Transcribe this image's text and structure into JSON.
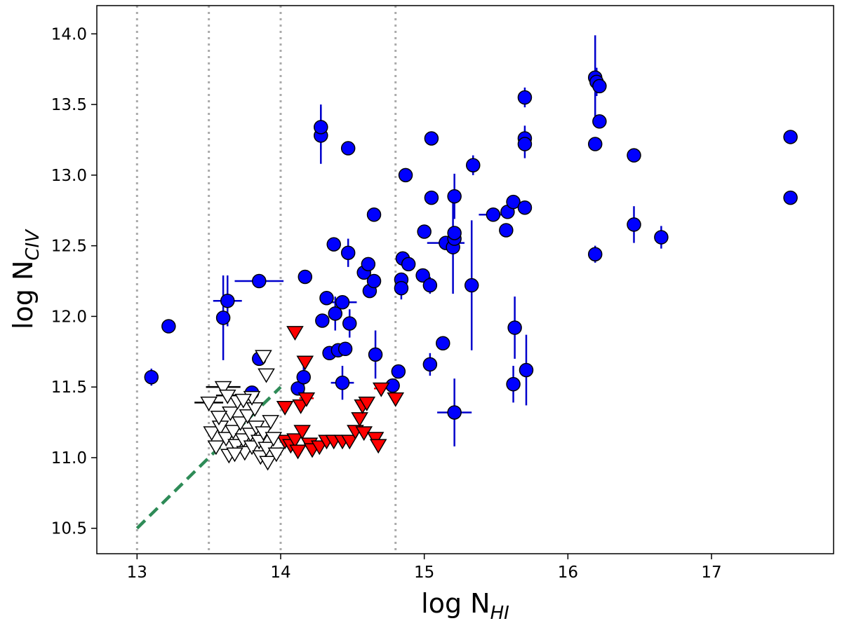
{
  "chart_data": {
    "type": "scatter",
    "xlabel": {
      "main": "log N",
      "sub": "HI"
    },
    "ylabel": {
      "main": "log N",
      "sub": "CIV"
    },
    "xlim": [
      12.72,
      17.85
    ],
    "ylim": [
      10.32,
      14.2
    ],
    "xticks": [
      "13",
      "14",
      "15",
      "16",
      "17"
    ],
    "yticks": [
      "10.5",
      "11.0",
      "11.5",
      "12.0",
      "12.5",
      "13.0",
      "13.5",
      "14.0"
    ],
    "grid": false,
    "legend": "none",
    "colors": {
      "detection": "#0000ff",
      "detection_err": "#0000cc",
      "upper_limit_red": "#ff0000",
      "upper_limit_white": "#ffffff",
      "reference_line": "#2e8b57",
      "vertical_lines": "#aaaaaa"
    },
    "vertical_lines_x": [
      13.0,
      13.5,
      14.0,
      14.8
    ],
    "reference_line": {
      "x": [
        13.0,
        14.0
      ],
      "y": [
        10.5,
        11.5
      ],
      "style": "dashed"
    },
    "series": [
      {
        "kind": "detection",
        "marker": "circle",
        "points": [
          {
            "x": 13.1,
            "y": 11.57,
            "yerr": 0.06
          },
          {
            "x": 13.22,
            "y": 11.93
          },
          {
            "x": 13.6,
            "y": 11.99,
            "yerr": 0.3
          },
          {
            "x": 13.63,
            "y": 12.11,
            "yerr": 0.18,
            "xerr": 0.1
          },
          {
            "x": 13.8,
            "y": 11.46
          },
          {
            "x": 13.85,
            "y": 12.25,
            "xerr": 0.17
          },
          {
            "x": 13.85,
            "y": 11.7
          },
          {
            "x": 14.12,
            "y": 11.49
          },
          {
            "x": 14.16,
            "y": 11.57,
            "yerr": 0.12
          },
          {
            "x": 14.17,
            "y": 12.28
          },
          {
            "x": 14.28,
            "y": 13.28,
            "yerr": 0.2
          },
          {
            "x": 14.28,
            "y": 13.34,
            "yerr": 0.16
          },
          {
            "x": 14.29,
            "y": 11.97
          },
          {
            "x": 14.32,
            "y": 12.13
          },
          {
            "x": 14.34,
            "y": 11.74
          },
          {
            "x": 14.37,
            "y": 12.51
          },
          {
            "x": 14.38,
            "y": 12.02,
            "yerr": 0.12
          },
          {
            "x": 14.4,
            "y": 11.76
          },
          {
            "x": 14.43,
            "y": 12.1,
            "xerr": 0.1
          },
          {
            "x": 14.43,
            "y": 11.53,
            "yerr": 0.12,
            "xerr": 0.08
          },
          {
            "x": 14.45,
            "y": 11.77
          },
          {
            "x": 14.47,
            "y": 12.45,
            "yerr": 0.1
          },
          {
            "x": 14.47,
            "y": 13.19
          },
          {
            "x": 14.48,
            "y": 11.95,
            "yerr": 0.1
          },
          {
            "x": 14.58,
            "y": 12.31
          },
          {
            "x": 14.61,
            "y": 12.37
          },
          {
            "x": 14.62,
            "y": 12.18
          },
          {
            "x": 14.65,
            "y": 12.25
          },
          {
            "x": 14.65,
            "y": 12.72
          },
          {
            "x": 14.66,
            "y": 11.73,
            "yerr": 0.17
          },
          {
            "x": 14.78,
            "y": 11.51
          },
          {
            "x": 14.82,
            "y": 11.61
          },
          {
            "x": 14.84,
            "y": 12.26
          },
          {
            "x": 14.84,
            "y": 12.2,
            "yerr": 0.08
          },
          {
            "x": 14.85,
            "y": 12.41
          },
          {
            "x": 14.89,
            "y": 12.37
          },
          {
            "x": 14.87,
            "y": 13.0
          },
          {
            "x": 14.99,
            "y": 12.29
          },
          {
            "x": 15.0,
            "y": 12.6
          },
          {
            "x": 15.04,
            "y": 12.22,
            "yerr": 0.06
          },
          {
            "x": 15.04,
            "y": 11.66,
            "yerr": 0.08
          },
          {
            "x": 15.05,
            "y": 12.84
          },
          {
            "x": 15.05,
            "y": 13.26
          },
          {
            "x": 15.13,
            "y": 11.81
          },
          {
            "x": 15.15,
            "y": 12.52,
            "xerr": 0.13
          },
          {
            "x": 15.2,
            "y": 12.49,
            "yerr": 0.33
          },
          {
            "x": 15.21,
            "y": 12.55
          },
          {
            "x": 15.21,
            "y": 12.59
          },
          {
            "x": 15.21,
            "y": 12.85,
            "yerr": 0.16
          },
          {
            "x": 15.21,
            "y": 11.32,
            "yerr": 0.24,
            "xerr": 0.12
          },
          {
            "x": 15.33,
            "y": 12.22,
            "yerr": 0.46
          },
          {
            "x": 15.34,
            "y": 13.07,
            "yerr": 0.07
          },
          {
            "x": 15.48,
            "y": 12.72,
            "xerr": 0.1
          },
          {
            "x": 15.57,
            "y": 12.61
          },
          {
            "x": 15.58,
            "y": 12.74
          },
          {
            "x": 15.62,
            "y": 12.81
          },
          {
            "x": 15.62,
            "y": 11.52,
            "yerr": 0.13
          },
          {
            "x": 15.63,
            "y": 11.92,
            "yerr": 0.22
          },
          {
            "x": 15.7,
            "y": 13.55,
            "yerr": 0.07
          },
          {
            "x": 15.7,
            "y": 13.26,
            "yerr": 0.09
          },
          {
            "x": 15.7,
            "y": 13.22,
            "yerr": 0.1
          },
          {
            "x": 15.7,
            "y": 12.77
          },
          {
            "x": 15.71,
            "y": 11.62,
            "yerr": 0.25
          },
          {
            "x": 16.19,
            "y": 13.69,
            "yerr": 0.3
          },
          {
            "x": 16.19,
            "y": 13.22
          },
          {
            "x": 16.2,
            "y": 13.66,
            "yerr": 0.1
          },
          {
            "x": 16.22,
            "y": 13.63
          },
          {
            "x": 16.22,
            "y": 13.38
          },
          {
            "x": 16.19,
            "y": 12.44,
            "yerr": 0.06
          },
          {
            "x": 16.46,
            "y": 13.14
          },
          {
            "x": 16.46,
            "y": 12.65,
            "yerr": 0.13
          },
          {
            "x": 16.65,
            "y": 12.56,
            "yerr": 0.08
          },
          {
            "x": 17.55,
            "y": 13.27
          },
          {
            "x": 17.55,
            "y": 12.84
          }
        ]
      },
      {
        "kind": "upper_limit_red",
        "marker": "triangle-down",
        "points": [
          {
            "x": 14.03,
            "y": 11.12
          },
          {
            "x": 14.07,
            "y": 11.09
          },
          {
            "x": 14.1,
            "y": 11.13
          },
          {
            "x": 14.12,
            "y": 11.05
          },
          {
            "x": 14.15,
            "y": 11.19
          },
          {
            "x": 14.14,
            "y": 11.37
          },
          {
            "x": 14.18,
            "y": 11.42,
            "xerr": 0.05
          },
          {
            "x": 14.2,
            "y": 11.1
          },
          {
            "x": 14.22,
            "y": 11.06
          },
          {
            "x": 14.17,
            "y": 11.68
          },
          {
            "x": 14.1,
            "y": 11.89
          },
          {
            "x": 14.27,
            "y": 11.08
          },
          {
            "x": 14.32,
            "y": 11.12
          },
          {
            "x": 14.37,
            "y": 11.12
          },
          {
            "x": 14.43,
            "y": 11.12
          },
          {
            "x": 14.48,
            "y": 11.12
          },
          {
            "x": 14.52,
            "y": 11.19
          },
          {
            "x": 14.55,
            "y": 11.28
          },
          {
            "x": 14.57,
            "y": 11.37
          },
          {
            "x": 14.6,
            "y": 11.39
          },
          {
            "x": 14.58,
            "y": 11.18
          },
          {
            "x": 14.66,
            "y": 11.14
          },
          {
            "x": 14.68,
            "y": 11.09
          },
          {
            "x": 14.7,
            "y": 11.49,
            "xerr": 0.05
          },
          {
            "x": 14.8,
            "y": 11.42
          },
          {
            "x": 14.03,
            "y": 11.36
          }
        ]
      },
      {
        "kind": "upper_limit_white",
        "marker": "triangle-down",
        "points": [
          {
            "x": 13.5,
            "y": 11.39,
            "xerr": 0.1
          },
          {
            "x": 13.52,
            "y": 11.18
          },
          {
            "x": 13.55,
            "y": 11.08
          },
          {
            "x": 13.58,
            "y": 11.22
          },
          {
            "x": 13.6,
            "y": 11.5,
            "xerr": 0.12
          },
          {
            "x": 13.62,
            "y": 11.14
          },
          {
            "x": 13.64,
            "y": 11.02
          },
          {
            "x": 13.65,
            "y": 11.32
          },
          {
            "x": 13.67,
            "y": 11.19
          },
          {
            "x": 13.69,
            "y": 11.09
          },
          {
            "x": 13.7,
            "y": 11.4
          },
          {
            "x": 13.72,
            "y": 11.25
          },
          {
            "x": 13.74,
            "y": 11.13
          },
          {
            "x": 13.75,
            "y": 11.04
          },
          {
            "x": 13.77,
            "y": 11.3
          },
          {
            "x": 13.79,
            "y": 11.17
          },
          {
            "x": 13.8,
            "y": 11.08
          },
          {
            "x": 13.82,
            "y": 11.35
          },
          {
            "x": 13.83,
            "y": 11.22
          },
          {
            "x": 13.85,
            "y": 11.12
          },
          {
            "x": 13.86,
            "y": 11.01
          },
          {
            "x": 13.88,
            "y": 11.18
          },
          {
            "x": 13.9,
            "y": 11.07
          },
          {
            "x": 13.91,
            "y": 10.97
          },
          {
            "x": 13.93,
            "y": 11.26
          },
          {
            "x": 13.95,
            "y": 11.14
          },
          {
            "x": 13.97,
            "y": 11.03
          },
          {
            "x": 13.88,
            "y": 11.72
          },
          {
            "x": 13.9,
            "y": 11.59
          },
          {
            "x": 13.68,
            "y": 11.03
          },
          {
            "x": 13.57,
            "y": 11.29
          },
          {
            "x": 13.63,
            "y": 11.44,
            "xerr": 0.08
          },
          {
            "x": 13.8,
            "y": 11.43
          },
          {
            "x": 13.74,
            "y": 11.41
          }
        ]
      }
    ]
  }
}
